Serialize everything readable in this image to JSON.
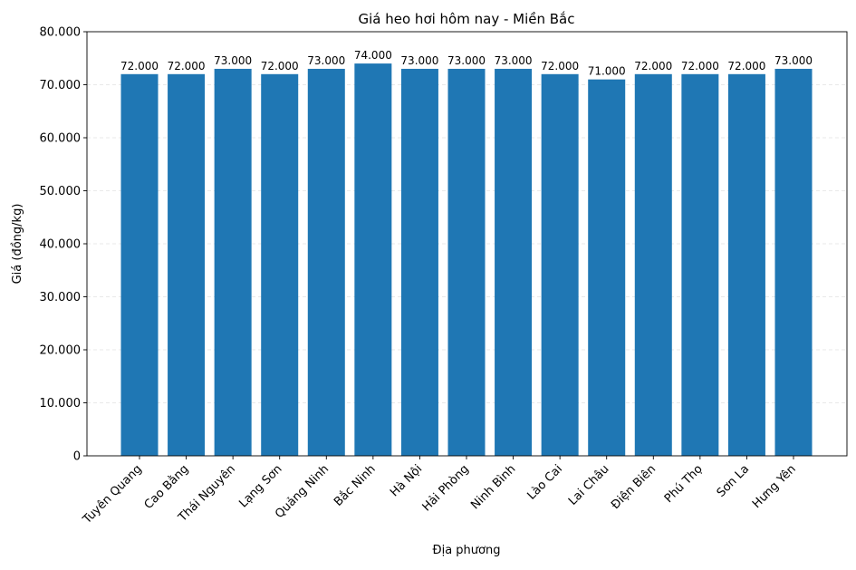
{
  "chart_data": {
    "type": "bar",
    "title": "Giá heo hơi hôm nay - Miền Bắc",
    "xlabel": "Địa phương",
    "ylabel": "Giá (đồng/kg)",
    "ylim": [
      0,
      80000
    ],
    "yticks": [
      0,
      10000,
      20000,
      30000,
      40000,
      50000,
      60000,
      70000,
      80000
    ],
    "ytick_labels": [
      "0",
      "10.000",
      "20.000",
      "30.000",
      "40.000",
      "50.000",
      "60.000",
      "70.000",
      "80.000"
    ],
    "grid": "y-dashed",
    "bar_color": "#1f77b4",
    "categories": [
      "Tuyên Quang",
      "Cao Bằng",
      "Thái Nguyên",
      "Lạng Sơn",
      "Quảng Ninh",
      "Bắc Ninh",
      "Hà Nội",
      "Hải Phòng",
      "Ninh Bình",
      "Lào Cai",
      "Lai Châu",
      "Điện Biên",
      "Phú Thọ",
      "Sơn La",
      "Hưng Yên"
    ],
    "values": [
      72000,
      72000,
      73000,
      72000,
      73000,
      74000,
      73000,
      73000,
      73000,
      72000,
      71000,
      72000,
      72000,
      72000,
      73000
    ],
    "data_labels": [
      "72.000",
      "72.000",
      "73.000",
      "72.000",
      "73.000",
      "74.000",
      "73.000",
      "73.000",
      "73.000",
      "72.000",
      "71.000",
      "72.000",
      "72.000",
      "72.000",
      "73.000"
    ]
  }
}
